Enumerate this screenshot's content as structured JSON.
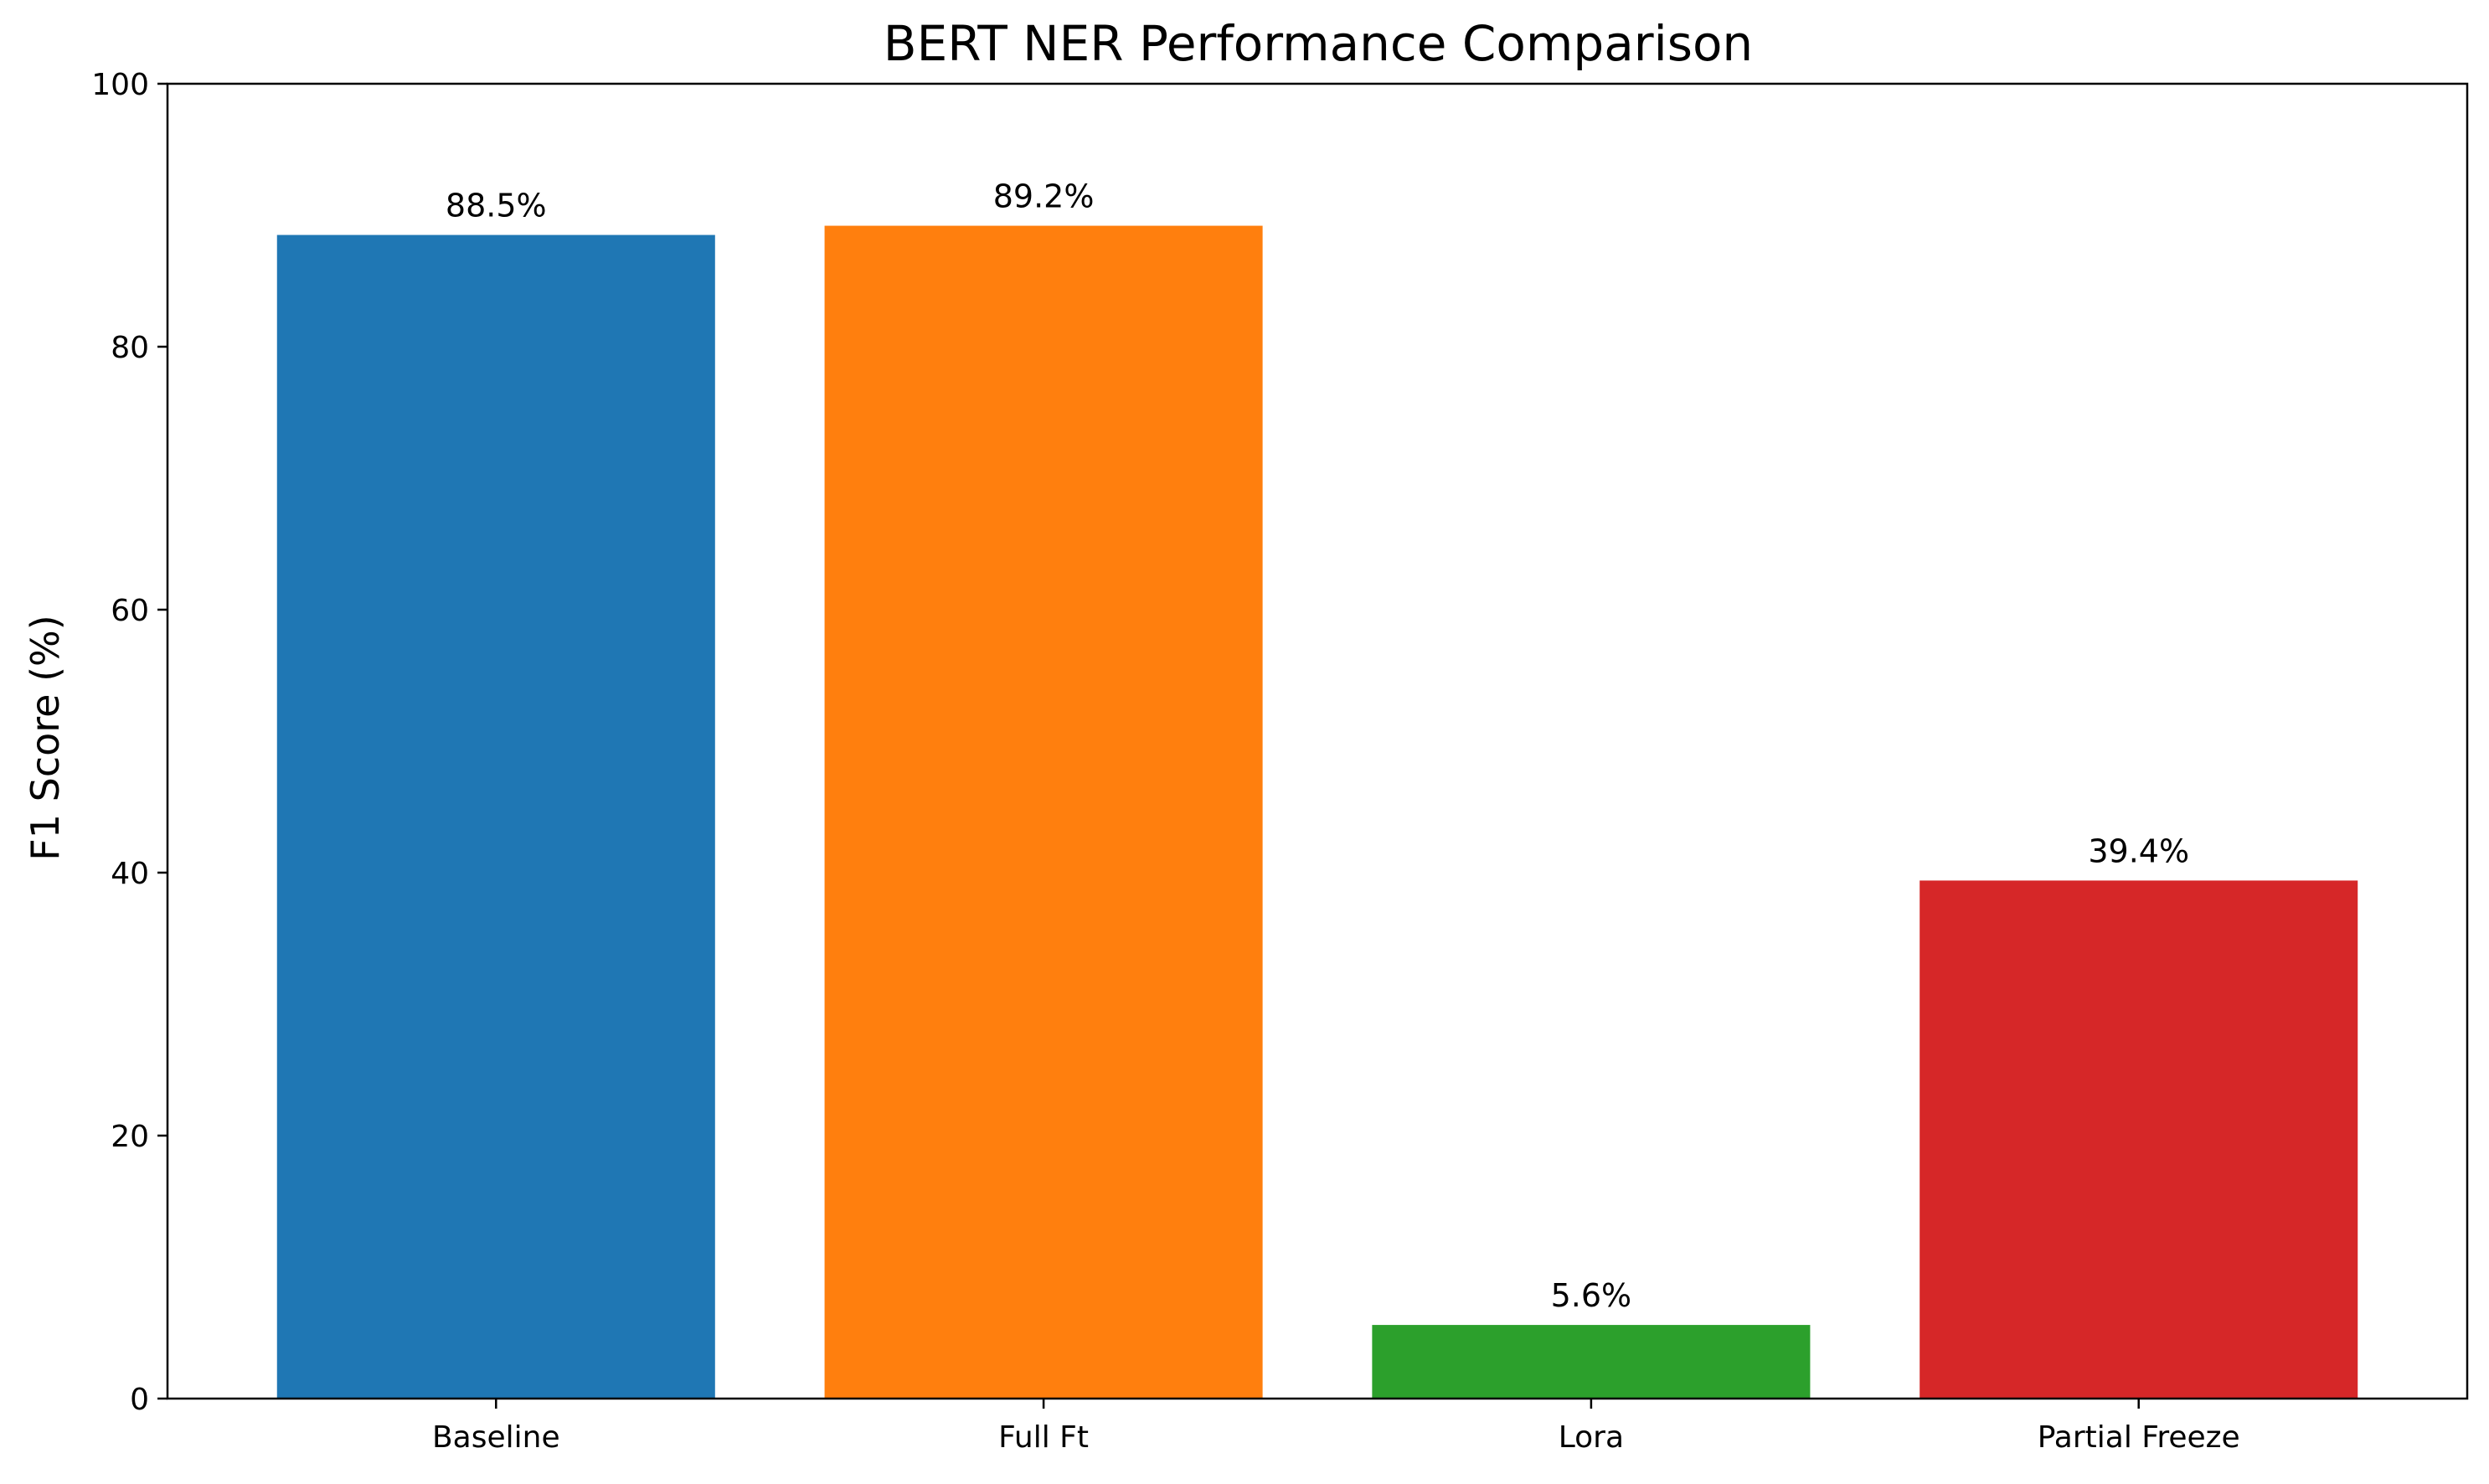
{
  "chart_data": {
    "type": "bar",
    "title": "BERT NER Performance Comparison",
    "xlabel": "",
    "ylabel": "F1 Score (%)",
    "categories": [
      "Baseline",
      "Full Ft",
      "Lora",
      "Partial Freeze"
    ],
    "values": [
      88.5,
      89.2,
      5.6,
      39.4
    ],
    "value_labels": [
      "88.5%",
      "89.2%",
      "5.6%",
      "39.4%"
    ],
    "colors": [
      "#1f77b4",
      "#ff7f0e",
      "#2ca02c",
      "#d62728"
    ],
    "ylim": [
      0,
      100
    ],
    "yticks": [
      0,
      20,
      40,
      60,
      80,
      100
    ],
    "grid": false,
    "legend": "none"
  }
}
